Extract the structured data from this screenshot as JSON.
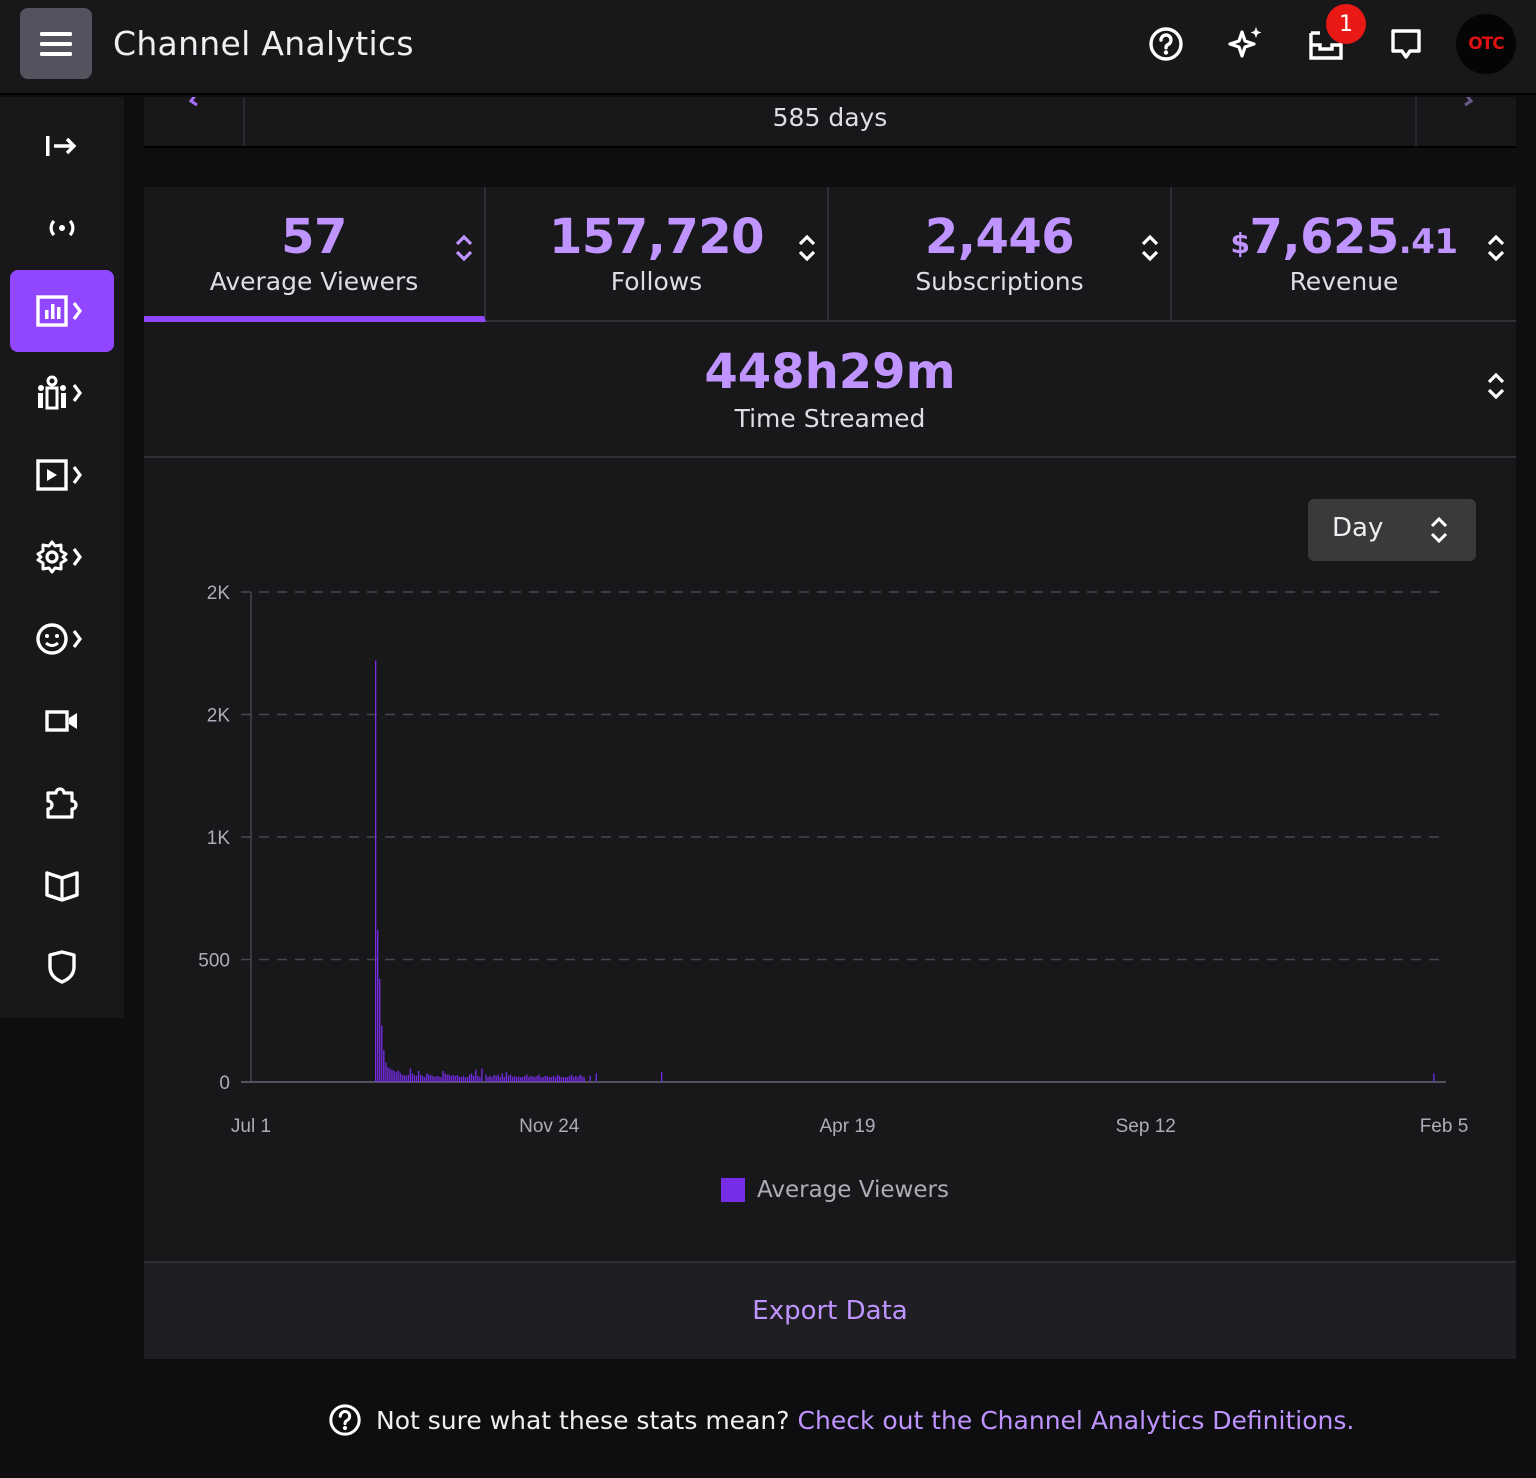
{
  "header": {
    "title": "Channel Analytics",
    "notification_count": "1",
    "avatar_text": "OTC"
  },
  "date_range": {
    "days": "585 days"
  },
  "stats": {
    "tabs": [
      {
        "value": "57",
        "label": "Average Viewers"
      },
      {
        "value": "157,720",
        "label": "Follows"
      },
      {
        "value": "2,446",
        "label": "Subscriptions"
      },
      {
        "value_dollar": "$",
        "value_main": "7,625",
        "value_cents": ".41",
        "label": "Revenue"
      }
    ],
    "time_streamed": {
      "value": "448h29m",
      "label": "Time Streamed"
    }
  },
  "granularity": {
    "selected": "Day"
  },
  "chart_data": {
    "type": "bar",
    "ylabel": "",
    "xlabel": "",
    "y_tick_labels": [
      "0",
      "500",
      "1K",
      "2K",
      "2K"
    ],
    "y_tick_values": [
      0,
      500,
      1000,
      1500,
      2000
    ],
    "ylim": [
      0,
      2000
    ],
    "x_tick_labels": [
      "Jul 1",
      "Nov 24",
      "Apr 19",
      "Sep 12",
      "Feb 5"
    ],
    "x_tick_days": [
      0,
      146,
      292,
      438,
      584
    ],
    "x_unit": "days since Jul 1",
    "grid": true,
    "legend": "bottom-center",
    "series": [
      {
        "name": "Average Viewers",
        "color": "#772ce8",
        "x": [
          61,
          62,
          63,
          64,
          65,
          66,
          67,
          68,
          69,
          70,
          71,
          72,
          73,
          74,
          75,
          76,
          77,
          78,
          79,
          80,
          81,
          82,
          83,
          84,
          85,
          86,
          87,
          88,
          89,
          90,
          91,
          92,
          93,
          94,
          95,
          96,
          97,
          98,
          99,
          100,
          101,
          102,
          103,
          104,
          105,
          106,
          107,
          108,
          109,
          110,
          111,
          112,
          113,
          115,
          116,
          117,
          118,
          119,
          120,
          121,
          122,
          123,
          124,
          125,
          126,
          127,
          128,
          129,
          130,
          131,
          132,
          133,
          134,
          135,
          136,
          137,
          138,
          139,
          140,
          141,
          142,
          143,
          144,
          145,
          146,
          147,
          148,
          149,
          150,
          151,
          152,
          153,
          154,
          155,
          156,
          157,
          158,
          159,
          160,
          161,
          162,
          163,
          166,
          169,
          201,
          579
        ],
        "values": [
          1720,
          620,
          420,
          230,
          130,
          80,
          60,
          55,
          50,
          45,
          40,
          48,
          38,
          30,
          28,
          25,
          30,
          55,
          35,
          28,
          25,
          45,
          30,
          25,
          20,
          35,
          30,
          28,
          25,
          20,
          25,
          22,
          20,
          45,
          35,
          30,
          30,
          25,
          30,
          25,
          28,
          22,
          20,
          25,
          20,
          20,
          30,
          35,
          25,
          50,
          25,
          20,
          55,
          30,
          20,
          25,
          20,
          30,
          25,
          30,
          20,
          35,
          20,
          40,
          25,
          30,
          20,
          25,
          20,
          22,
          20,
          20,
          25,
          30,
          20,
          25,
          22,
          20,
          25,
          30,
          20,
          20,
          25,
          25,
          20,
          20,
          25,
          20,
          30,
          25,
          20,
          20,
          20,
          20,
          25,
          30,
          20,
          25,
          20,
          30,
          25,
          20,
          25,
          35,
          40,
          35
        ]
      }
    ]
  },
  "export": {
    "label": "Export Data"
  },
  "footer": {
    "question": "Not sure what these stats mean?",
    "link": "Check out the Channel Analytics Definitions."
  }
}
